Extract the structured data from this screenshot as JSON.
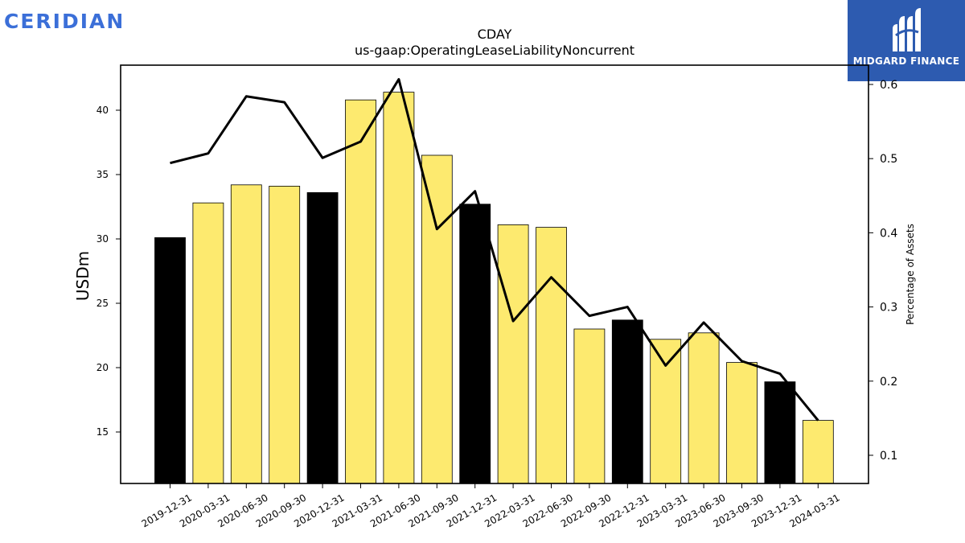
{
  "brand": {
    "left_logo": "CERIDIAN",
    "right_logo": "MIDGARD FINANCE"
  },
  "colors": {
    "annual_bar": "#000000",
    "quarter_bar": "#fdea6f",
    "line": "#000000",
    "brand_left": "#3b6fd8",
    "brand_right_bg": "#2d5bb0"
  },
  "chart_data": {
    "type": "bar",
    "title": "CDAY",
    "subtitle": "us-gaap:OperatingLeaseLiabilityNoncurrent",
    "ylabel": "USDm",
    "y2label": "Percentage of Assets",
    "ylim": [
      11,
      43.5
    ],
    "y2lim": [
      0.062,
      0.626
    ],
    "yticks": [
      15,
      20,
      25,
      30,
      35,
      40
    ],
    "y2ticks": [
      0.1,
      0.2,
      0.3,
      0.4,
      0.5,
      0.6
    ],
    "categories": [
      "2019-12-31",
      "2020-03-31",
      "2020-06-30",
      "2020-09-30",
      "2020-12-31",
      "2021-03-31",
      "2021-06-30",
      "2021-09-30",
      "2021-12-31",
      "2022-03-31",
      "2022-06-30",
      "2022-09-30",
      "2022-12-31",
      "2023-03-31",
      "2023-06-30",
      "2023-09-30",
      "2023-12-31",
      "2024-03-31"
    ],
    "series": [
      {
        "values": [
          30.1,
          32.8,
          34.2,
          34.1,
          33.6,
          40.8,
          41.4,
          36.5,
          32.7,
          31.1,
          30.9,
          23.0,
          23.7,
          22.2,
          22.7,
          20.4,
          18.9,
          15.9
        ],
        "annual": [
          true,
          false,
          false,
          false,
          true,
          false,
          false,
          false,
          true,
          false,
          false,
          false,
          true,
          false,
          false,
          false,
          true,
          false
        ]
      },
      {
        "axis": "right",
        "values": [
          0.494,
          0.507,
          0.584,
          0.576,
          0.501,
          0.523,
          0.607,
          0.405,
          0.456,
          0.281,
          0.34,
          0.288,
          0.3,
          0.221,
          0.279,
          0.227,
          0.21,
          0.147
        ]
      }
    ]
  }
}
